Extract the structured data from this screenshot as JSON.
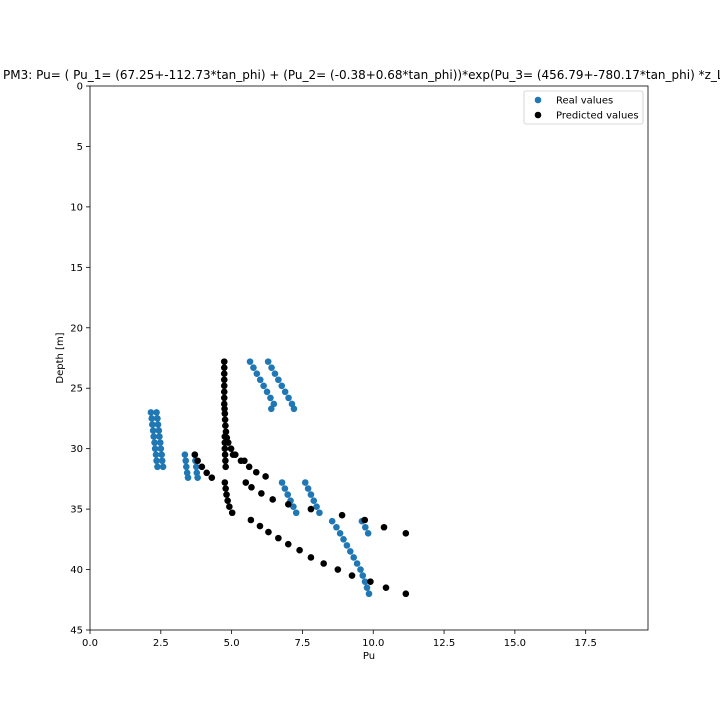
{
  "chart_data": {
    "type": "scatter",
    "title": "PM3: Pu= ( Pu_1= (67.25+-112.73*tan_phi) + (Pu_2= (-0.38+0.68*tan_phi))*exp(Pu_3= (456.79+-780.17*tan_phi) *z_L",
    "xlabel": "Pu",
    "ylabel": "Depth [m]",
    "xlim": [
      0,
      19.7
    ],
    "ylim": [
      45,
      0
    ],
    "y_inverted": true,
    "xticks": [
      "0.0",
      "2.5",
      "5.0",
      "7.5",
      "10.0",
      "12.5",
      "15.0",
      "17.5"
    ],
    "yticks": [
      "0",
      "5",
      "10",
      "15",
      "20",
      "25",
      "30",
      "35",
      "40",
      "45"
    ],
    "grid": false,
    "legend_position": "top-right",
    "series": [
      {
        "name": "Real values",
        "color": "#1f77b4",
        "points": [
          [
            5.65,
            22.8
          ],
          [
            5.77,
            23.3
          ],
          [
            5.89,
            23.8
          ],
          [
            6.01,
            24.3
          ],
          [
            6.13,
            24.8
          ],
          [
            6.25,
            25.3
          ],
          [
            6.37,
            25.8
          ],
          [
            6.49,
            26.3
          ],
          [
            6.29,
            22.8
          ],
          [
            6.41,
            23.3
          ],
          [
            6.53,
            23.8
          ],
          [
            6.65,
            24.3
          ],
          [
            6.77,
            24.8
          ],
          [
            6.89,
            25.3
          ],
          [
            7.01,
            25.8
          ],
          [
            7.13,
            26.3
          ],
          [
            7.2,
            26.7
          ],
          [
            6.4,
            26.7
          ],
          [
            2.15,
            27.0
          ],
          [
            2.18,
            27.5
          ],
          [
            2.2,
            28.0
          ],
          [
            2.23,
            28.5
          ],
          [
            2.25,
            29.0
          ],
          [
            2.28,
            29.5
          ],
          [
            2.3,
            30.0
          ],
          [
            2.33,
            30.5
          ],
          [
            2.35,
            31.0
          ],
          [
            2.38,
            31.5
          ],
          [
            2.35,
            27.0
          ],
          [
            2.38,
            27.5
          ],
          [
            2.4,
            28.0
          ],
          [
            2.43,
            28.5
          ],
          [
            2.45,
            29.0
          ],
          [
            2.48,
            29.5
          ],
          [
            2.5,
            30.0
          ],
          [
            2.53,
            30.5
          ],
          [
            2.55,
            31.0
          ],
          [
            2.58,
            31.5
          ],
          [
            3.35,
            30.5
          ],
          [
            3.38,
            31.0
          ],
          [
            3.4,
            31.5
          ],
          [
            3.43,
            32.0
          ],
          [
            3.46,
            32.4
          ],
          [
            3.7,
            30.5
          ],
          [
            3.72,
            31.0
          ],
          [
            3.75,
            31.5
          ],
          [
            3.77,
            32.0
          ],
          [
            3.8,
            32.4
          ],
          [
            6.78,
            32.8
          ],
          [
            6.88,
            33.3
          ],
          [
            6.98,
            33.8
          ],
          [
            7.08,
            34.3
          ],
          [
            7.18,
            34.8
          ],
          [
            7.28,
            35.3
          ],
          [
            7.6,
            32.8
          ],
          [
            7.7,
            33.3
          ],
          [
            7.8,
            33.8
          ],
          [
            7.9,
            34.3
          ],
          [
            8.0,
            34.8
          ],
          [
            8.1,
            35.3
          ],
          [
            8.55,
            36.0
          ],
          [
            8.7,
            36.5
          ],
          [
            8.83,
            37.0
          ],
          [
            8.95,
            37.5
          ],
          [
            9.07,
            38.0
          ],
          [
            9.19,
            38.5
          ],
          [
            9.31,
            39.0
          ],
          [
            9.43,
            39.5
          ],
          [
            9.55,
            40.0
          ],
          [
            9.63,
            40.5
          ],
          [
            9.71,
            41.0
          ],
          [
            9.78,
            41.5
          ],
          [
            9.85,
            42.0
          ],
          [
            9.6,
            36.0
          ],
          [
            9.72,
            36.5
          ],
          [
            9.82,
            37.0
          ]
        ]
      },
      {
        "name": "Predicted values",
        "color": "#000000",
        "points": [
          [
            4.74,
            22.8
          ],
          [
            4.74,
            23.3
          ],
          [
            4.74,
            23.8
          ],
          [
            4.74,
            24.3
          ],
          [
            4.74,
            24.8
          ],
          [
            4.74,
            25.3
          ],
          [
            4.74,
            25.8
          ],
          [
            4.74,
            26.3
          ],
          [
            4.75,
            26.7
          ],
          [
            4.76,
            27.1
          ],
          [
            4.77,
            27.6
          ],
          [
            4.78,
            28.1
          ],
          [
            4.8,
            28.6
          ],
          [
            4.83,
            29.1
          ],
          [
            4.88,
            29.5
          ],
          [
            4.98,
            30.0
          ],
          [
            5.13,
            30.5
          ],
          [
            5.33,
            31.0
          ],
          [
            4.76,
            29.0
          ],
          [
            4.76,
            29.5
          ],
          [
            4.76,
            30.0
          ],
          [
            4.77,
            30.5
          ],
          [
            4.78,
            31.0
          ],
          [
            4.79,
            31.5
          ],
          [
            5.05,
            30.5
          ],
          [
            5.45,
            31.0
          ],
          [
            5.62,
            31.5
          ],
          [
            5.87,
            31.95
          ],
          [
            6.2,
            32.3
          ],
          [
            3.7,
            30.5
          ],
          [
            3.8,
            31.0
          ],
          [
            3.95,
            31.5
          ],
          [
            4.12,
            32.0
          ],
          [
            4.3,
            32.4
          ],
          [
            4.76,
            32.8
          ],
          [
            4.79,
            33.3
          ],
          [
            4.82,
            33.8
          ],
          [
            4.86,
            34.3
          ],
          [
            4.92,
            34.8
          ],
          [
            5.02,
            35.3
          ],
          [
            5.5,
            32.8
          ],
          [
            5.7,
            33.2
          ],
          [
            6.05,
            33.7
          ],
          [
            6.45,
            34.2
          ],
          [
            7.0,
            34.6
          ],
          [
            7.8,
            35.0
          ],
          [
            8.9,
            35.5
          ],
          [
            5.68,
            35.9
          ],
          [
            6.0,
            36.4
          ],
          [
            6.3,
            36.9
          ],
          [
            6.65,
            37.4
          ],
          [
            7.0,
            37.9
          ],
          [
            7.4,
            38.4
          ],
          [
            7.8,
            39.0
          ],
          [
            8.25,
            39.5
          ],
          [
            8.75,
            40.0
          ],
          [
            9.25,
            40.5
          ],
          [
            9.9,
            41.0
          ],
          [
            10.45,
            41.5
          ],
          [
            11.15,
            42.0
          ],
          [
            9.7,
            35.9
          ],
          [
            10.38,
            36.5
          ],
          [
            11.15,
            37.0
          ]
        ]
      }
    ]
  }
}
